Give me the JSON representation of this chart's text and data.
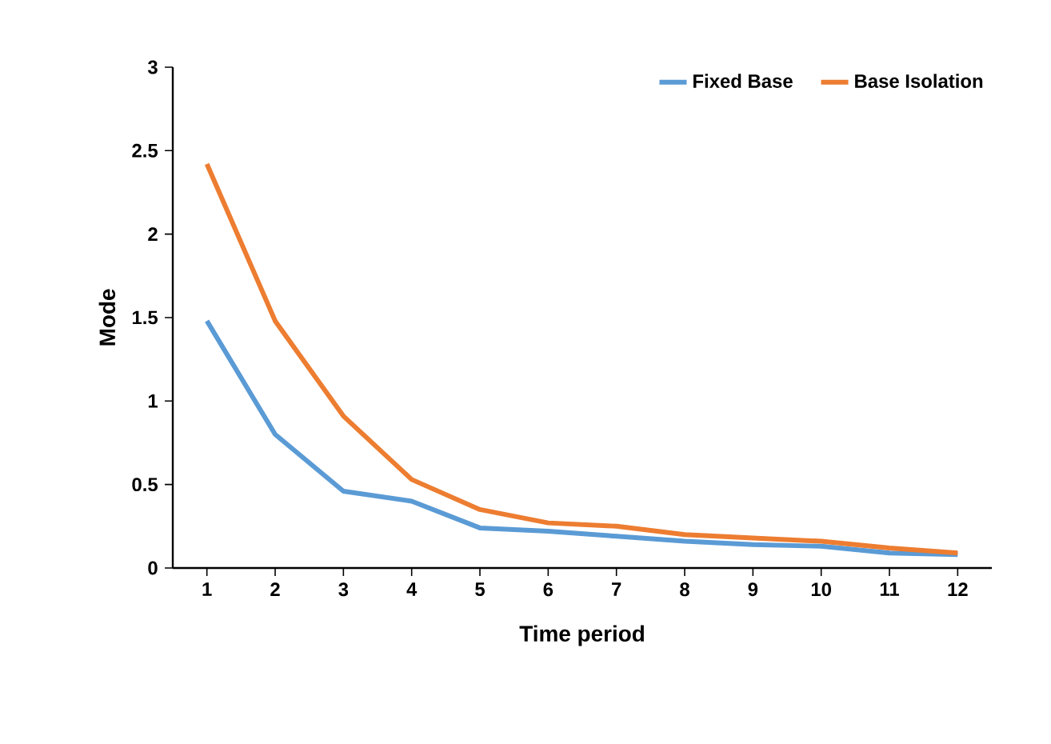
{
  "chart_data": {
    "type": "line",
    "xlabel": "Time period",
    "ylabel": "Mode",
    "categories": [
      "1",
      "2",
      "3",
      "4",
      "5",
      "6",
      "7",
      "8",
      "9",
      "10",
      "11",
      "12"
    ],
    "series": [
      {
        "name": "Fixed Base",
        "color": "#5b9bd5",
        "values": [
          1.48,
          0.8,
          0.46,
          0.4,
          0.24,
          0.22,
          0.19,
          0.16,
          0.14,
          0.13,
          0.09,
          0.08
        ]
      },
      {
        "name": "Base Isolation",
        "color": "#ed7d31",
        "values": [
          2.42,
          1.48,
          0.91,
          0.53,
          0.35,
          0.27,
          0.25,
          0.2,
          0.18,
          0.16,
          0.12,
          0.09
        ]
      }
    ],
    "ylim": [
      0,
      3
    ],
    "yticks": [
      0,
      0.5,
      1,
      1.5,
      2,
      2.5,
      3
    ],
    "legend": "top right",
    "grid": false,
    "marker": "none",
    "line_style": "solid"
  }
}
